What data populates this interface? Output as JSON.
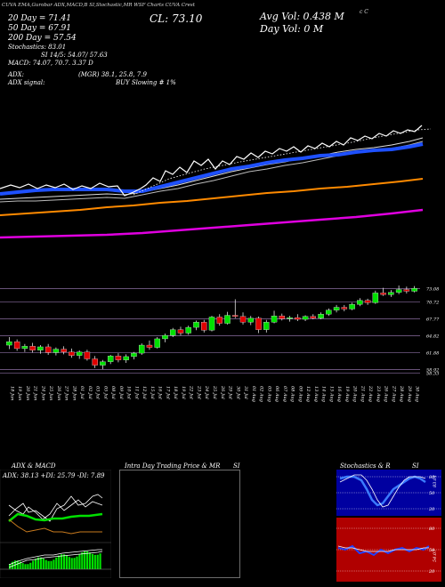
{
  "header": {
    "top_strip": "CUVA EMA,Gurobar ADX,MACD,B SI,Stochastic,MR  WSF Charts CUVA  Crest",
    "top_right_mark": "c C",
    "ma20": "20 Day = 71.41",
    "ma50": "50 Day = 67.91",
    "ma200": "200 Day = 57.54",
    "stochastics": "Stochastics: 83.01",
    "si": "SI 14/5: 54.07/ 57.63",
    "macd": "MACD: 74.07, 70.7. 3.37 D",
    "close": "CL: 73.10",
    "avg_vol": "Avg Vol: 0.438  M",
    "day_vol": "Day Vol: 0  M",
    "adx": "ADX:",
    "adx_value": "(MGR) 38.1, 25.8, 7.9",
    "adx_signal_label": "ADX  signal:",
    "adx_signal_value": "BUY Slowing  # 1%"
  },
  "price_levels": [
    "73.08",
    "70.72",
    "67.77",
    "64.82",
    "61.88",
    "58.92",
    "58.33"
  ],
  "dates": [
    "18 Jun",
    "19 Jun",
    "20 Jun",
    "21 Jun",
    "24 Jun",
    "25 Jun",
    "26 Jun",
    "27 Jun",
    "28 Jun",
    "01 Jul",
    "02 Jul",
    "03 Jul",
    "05 Jul",
    "08 Jul",
    "09 Jul",
    "10 Jul",
    "11 Jul",
    "12 Jul",
    "15 Jul",
    "16 Jul",
    "17 Jul",
    "18 Jul",
    "19 Jul",
    "22 Jul",
    "23 Jul",
    "24 Jul",
    "25 Jul",
    "26 Jul",
    "29 Jul",
    "30 Jul",
    "31 Jul",
    "01 Aug",
    "02 Aug",
    "05 Aug",
    "06 Aug",
    "07 Aug",
    "08 Aug",
    "09 Aug",
    "12 Aug",
    "13 Aug",
    "14 Aug",
    "15 Aug",
    "16 Aug",
    "19 Aug",
    "20 Aug",
    "21 Aug",
    "22 Aug",
    "23 Aug",
    "26 Aug",
    "27 Aug",
    "28 Aug",
    "29 Aug",
    "30 Aug"
  ],
  "panels": {
    "adx_macd_title": "ADX  & MACD",
    "adx_line": "ADX: 38.13  +DI: 25.79  -DI: 7.89",
    "intraday_title": "Intra Day Trading Price  & MR",
    "intraday_si": "SI",
    "stoch_title": "Stochastics  & R",
    "stoch_si": "SI",
    "stoch_ticks": [
      "80",
      "50",
      "20"
    ],
    "rsi_ticks": [
      "80",
      "50",
      "20"
    ],
    "stoch_right_label": "83.01",
    "rsi_right_label": "54.07"
  },
  "colors": {
    "up": "#00e000",
    "down": "#e00000",
    "ema_blue": "#1e50ff",
    "ema_orange": "#ff8a00",
    "ema_magenta": "#e000e0",
    "si_red": "#b00000",
    "stoch_bg": "#0000a0"
  },
  "chart_data": {
    "type": "candlestick",
    "ylim": [
      57,
      75
    ],
    "candles": [
      {
        "o": 63.2,
        "h": 64.6,
        "l": 62.5,
        "c": 63.8
      },
      {
        "o": 63.8,
        "h": 64.2,
        "l": 62.2,
        "c": 62.6
      },
      {
        "o": 62.6,
        "h": 63.4,
        "l": 62.0,
        "c": 63.0
      },
      {
        "o": 63.0,
        "h": 63.6,
        "l": 61.9,
        "c": 62.3
      },
      {
        "o": 62.3,
        "h": 63.2,
        "l": 61.7,
        "c": 62.9
      },
      {
        "o": 62.9,
        "h": 63.4,
        "l": 61.5,
        "c": 61.9
      },
      {
        "o": 61.9,
        "h": 62.8,
        "l": 61.4,
        "c": 62.5
      },
      {
        "o": 62.5,
        "h": 63.0,
        "l": 61.6,
        "c": 62.0
      },
      {
        "o": 62.0,
        "h": 62.6,
        "l": 61.0,
        "c": 61.4
      },
      {
        "o": 61.4,
        "h": 62.3,
        "l": 60.8,
        "c": 62.0
      },
      {
        "o": 62.0,
        "h": 62.4,
        "l": 60.5,
        "c": 60.8
      },
      {
        "o": 60.8,
        "h": 61.3,
        "l": 59.2,
        "c": 59.7
      },
      {
        "o": 59.7,
        "h": 60.6,
        "l": 59.0,
        "c": 60.3
      },
      {
        "o": 60.3,
        "h": 61.5,
        "l": 59.9,
        "c": 61.3
      },
      {
        "o": 61.3,
        "h": 61.8,
        "l": 60.2,
        "c": 60.6
      },
      {
        "o": 60.6,
        "h": 61.6,
        "l": 60.1,
        "c": 61.2
      },
      {
        "o": 61.2,
        "h": 62.0,
        "l": 60.7,
        "c": 61.8
      },
      {
        "o": 61.8,
        "h": 63.5,
        "l": 61.5,
        "c": 63.2
      },
      {
        "o": 63.2,
        "h": 64.0,
        "l": 62.4,
        "c": 62.8
      },
      {
        "o": 62.8,
        "h": 64.6,
        "l": 62.6,
        "c": 64.3
      },
      {
        "o": 64.3,
        "h": 65.2,
        "l": 63.7,
        "c": 64.9
      },
      {
        "o": 64.9,
        "h": 66.2,
        "l": 64.6,
        "c": 65.9
      },
      {
        "o": 65.9,
        "h": 66.4,
        "l": 64.9,
        "c": 65.3
      },
      {
        "o": 65.3,
        "h": 66.6,
        "l": 65.0,
        "c": 66.3
      },
      {
        "o": 66.3,
        "h": 67.5,
        "l": 65.8,
        "c": 67.2
      },
      {
        "o": 67.2,
        "h": 67.6,
        "l": 65.4,
        "c": 65.8
      },
      {
        "o": 65.8,
        "h": 68.3,
        "l": 65.6,
        "c": 68.1
      },
      {
        "o": 68.1,
        "h": 68.6,
        "l": 66.6,
        "c": 67.0
      },
      {
        "o": 67.0,
        "h": 69.0,
        "l": 66.8,
        "c": 68.4
      },
      {
        "o": 68.4,
        "h": 71.2,
        "l": 67.9,
        "c": 68.2
      },
      {
        "o": 68.2,
        "h": 68.9,
        "l": 66.8,
        "c": 67.2
      },
      {
        "o": 67.2,
        "h": 68.3,
        "l": 66.7,
        "c": 67.9
      },
      {
        "o": 67.9,
        "h": 68.2,
        "l": 65.3,
        "c": 65.9
      },
      {
        "o": 65.9,
        "h": 67.6,
        "l": 65.4,
        "c": 67.2
      },
      {
        "o": 67.2,
        "h": 69.2,
        "l": 67.0,
        "c": 68.3
      },
      {
        "o": 68.3,
        "h": 68.7,
        "l": 67.5,
        "c": 67.8
      },
      {
        "o": 67.8,
        "h": 68.3,
        "l": 67.3,
        "c": 68.0
      },
      {
        "o": 68.0,
        "h": 68.6,
        "l": 67.4,
        "c": 67.7
      },
      {
        "o": 67.7,
        "h": 68.4,
        "l": 67.4,
        "c": 68.2
      },
      {
        "o": 68.2,
        "h": 68.6,
        "l": 67.7,
        "c": 67.9
      },
      {
        "o": 67.9,
        "h": 68.9,
        "l": 67.7,
        "c": 68.6
      },
      {
        "o": 68.6,
        "h": 69.6,
        "l": 68.3,
        "c": 69.3
      },
      {
        "o": 69.3,
        "h": 70.2,
        "l": 68.9,
        "c": 69.8
      },
      {
        "o": 69.8,
        "h": 70.2,
        "l": 69.1,
        "c": 69.5
      },
      {
        "o": 69.5,
        "h": 70.6,
        "l": 69.3,
        "c": 70.3
      },
      {
        "o": 70.3,
        "h": 71.4,
        "l": 70.0,
        "c": 71.0
      },
      {
        "o": 71.0,
        "h": 71.3,
        "l": 70.2,
        "c": 70.6
      },
      {
        "o": 70.6,
        "h": 72.7,
        "l": 70.4,
        "c": 72.3
      },
      {
        "o": 72.3,
        "h": 73.2,
        "l": 71.8,
        "c": 72.0
      },
      {
        "o": 72.0,
        "h": 72.8,
        "l": 71.6,
        "c": 72.4
      },
      {
        "o": 72.4,
        "h": 73.6,
        "l": 72.1,
        "c": 72.9
      },
      {
        "o": 72.9,
        "h": 73.4,
        "l": 72.2,
        "c": 72.6
      },
      {
        "o": 72.6,
        "h": 73.5,
        "l": 72.4,
        "c": 73.1
      }
    ]
  }
}
